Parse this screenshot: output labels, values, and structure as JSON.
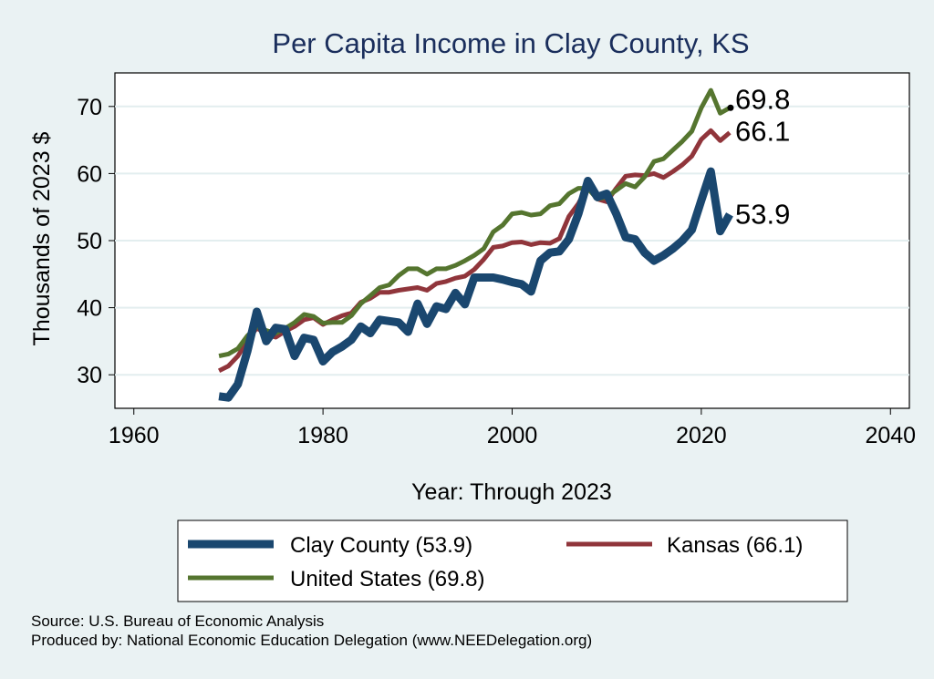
{
  "chart_data": {
    "type": "line",
    "title": "Per Capita Income in Clay County, KS",
    "xlabel": "Year: Through 2023",
    "ylabel": "Thousands of 2023 $",
    "xlim": [
      1958,
      2042
    ],
    "ylim": [
      25,
      75
    ],
    "x_ticks": [
      1960,
      1980,
      2000,
      2020,
      2040
    ],
    "y_ticks": [
      30,
      40,
      50,
      60,
      70
    ],
    "grid": true,
    "legend_position": "bottom",
    "x": [
      1969,
      1970,
      1971,
      1972,
      1973,
      1974,
      1975,
      1976,
      1977,
      1978,
      1979,
      1980,
      1981,
      1982,
      1983,
      1984,
      1985,
      1986,
      1987,
      1988,
      1989,
      1990,
      1991,
      1992,
      1993,
      1994,
      1995,
      1996,
      1997,
      1998,
      1999,
      2000,
      2001,
      2002,
      2003,
      2004,
      2005,
      2006,
      2007,
      2008,
      2009,
      2010,
      2011,
      2012,
      2013,
      2014,
      2015,
      2016,
      2017,
      2018,
      2019,
      2020,
      2021,
      2022,
      2023
    ],
    "series": [
      {
        "name": "Clay County (53.9)",
        "color": "#1a476f",
        "end_label": "53.9",
        "values": [
          26.8,
          26.6,
          28.6,
          33.5,
          39.4,
          35.0,
          37.0,
          36.8,
          32.8,
          35.5,
          35.2,
          32.0,
          33.4,
          34.2,
          35.2,
          37.2,
          36.2,
          38.2,
          38.0,
          37.8,
          36.4,
          40.6,
          37.6,
          40.2,
          39.8,
          42.2,
          40.5,
          44.5,
          44.5,
          44.5,
          44.2,
          43.8,
          43.5,
          42.4,
          47.0,
          48.2,
          48.4,
          50.2,
          54.0,
          58.9,
          56.5,
          57.0,
          54.0,
          50.5,
          50.2,
          48.2,
          47.0,
          47.8,
          48.8,
          50.0,
          51.6,
          56.0,
          60.3,
          51.4,
          53.9
        ]
      },
      {
        "name": "Kansas (66.1)",
        "color": "#90353b",
        "end_label": "66.1",
        "values": [
          30.6,
          31.3,
          32.8,
          35.0,
          37.0,
          36.0,
          35.6,
          36.5,
          37.2,
          38.2,
          38.5,
          37.5,
          38.2,
          38.8,
          39.2,
          40.8,
          41.4,
          42.3,
          42.3,
          42.6,
          42.8,
          43.0,
          42.6,
          43.6,
          43.9,
          44.4,
          44.7,
          45.7,
          47.2,
          49.0,
          49.2,
          49.7,
          49.8,
          49.4,
          49.7,
          49.6,
          50.3,
          53.6,
          55.5,
          58.2,
          56.2,
          55.8,
          57.8,
          59.6,
          59.8,
          59.7,
          60.0,
          59.4,
          60.3,
          61.3,
          62.6,
          65.1,
          66.4,
          64.9,
          66.1
        ]
      },
      {
        "name": "United States (69.8)",
        "color": "#55752f",
        "end_label": "69.8",
        "values": [
          32.8,
          33.1,
          33.9,
          35.8,
          37.2,
          36.6,
          36.2,
          36.9,
          37.8,
          39.0,
          38.7,
          37.7,
          37.8,
          37.8,
          38.8,
          40.6,
          41.8,
          43.0,
          43.4,
          44.8,
          45.8,
          45.8,
          45.0,
          45.8,
          45.8,
          46.3,
          47.0,
          47.8,
          48.8,
          51.3,
          52.3,
          54.0,
          54.2,
          53.8,
          54.0,
          55.2,
          55.5,
          57.0,
          57.8,
          57.8,
          56.2,
          56.5,
          57.5,
          58.5,
          58.0,
          59.5,
          61.8,
          62.2,
          63.5,
          64.8,
          66.3,
          69.8,
          72.4,
          69.0,
          69.8
        ]
      }
    ]
  },
  "source_line": "Source: U.S. Bureau of Economic Analysis",
  "produced_line": "Produced by: National Economic Education Delegation (www.NEEDelegation.org)"
}
